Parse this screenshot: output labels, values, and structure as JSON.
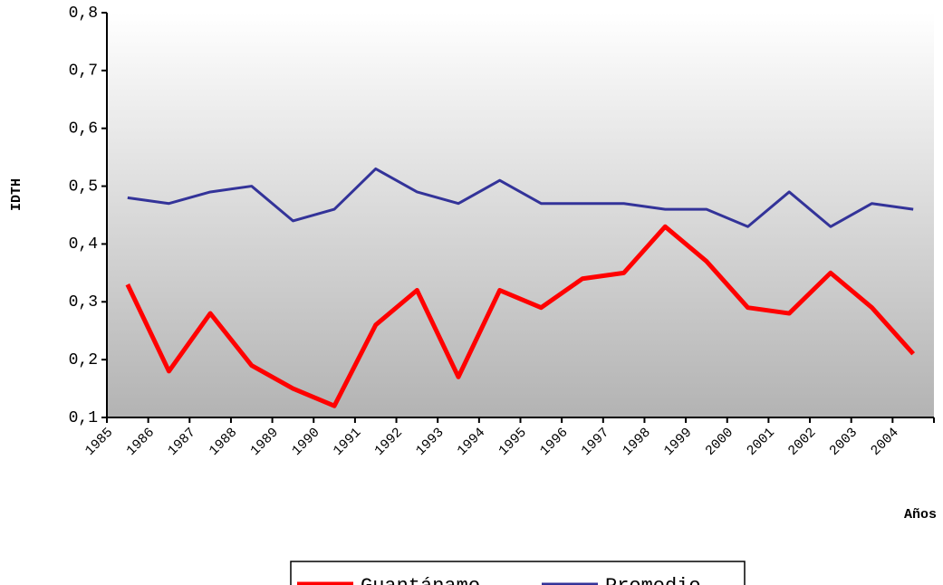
{
  "chart_data": {
    "type": "line",
    "x_label": "Años",
    "y_label": "IDTH",
    "categories": [
      "1985",
      "1986",
      "1987",
      "1988",
      "1989",
      "1990",
      "1991",
      "1992",
      "1993",
      "1994",
      "1995",
      "1996",
      "1997",
      "1998",
      "1999",
      "2000",
      "2001",
      "2002",
      "2003",
      "2004"
    ],
    "series": [
      {
        "name": "Guantánamo",
        "color": "#ff0000",
        "values": [
          0.33,
          0.18,
          0.28,
          0.19,
          0.15,
          0.12,
          0.26,
          0.32,
          0.17,
          0.32,
          0.29,
          0.34,
          0.35,
          0.43,
          0.37,
          0.29,
          0.28,
          0.35,
          0.29,
          0.21
        ]
      },
      {
        "name": "Promedio",
        "color": "#333399",
        "values": [
          0.48,
          0.47,
          0.49,
          0.5,
          0.44,
          0.46,
          0.53,
          0.49,
          0.47,
          0.51,
          0.47,
          0.47,
          0.47,
          0.46,
          0.46,
          0.43,
          0.49,
          0.43,
          0.47,
          0.46
        ]
      }
    ],
    "ylim": [
      0.1,
      0.8
    ],
    "yticks": [
      {
        "value": 0.1,
        "label": "0,1"
      },
      {
        "value": 0.2,
        "label": "0,2"
      },
      {
        "value": 0.3,
        "label": "0,3"
      },
      {
        "value": 0.4,
        "label": "0,4"
      },
      {
        "value": 0.5,
        "label": "0,5"
      },
      {
        "value": 0.6,
        "label": "0,6"
      },
      {
        "value": 0.7,
        "label": "0,7"
      },
      {
        "value": 0.8,
        "label": "0,8"
      }
    ],
    "legend": "bottom"
  }
}
